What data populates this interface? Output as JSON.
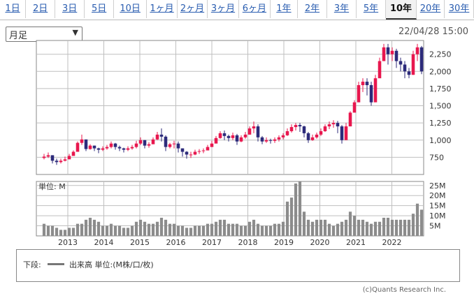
{
  "tabs": [
    {
      "label": "1日",
      "active": false
    },
    {
      "label": "2日",
      "active": false
    },
    {
      "label": "3日",
      "active": false
    },
    {
      "label": "5日",
      "active": false
    },
    {
      "label": "10日",
      "active": false
    },
    {
      "label": "1ヶ月",
      "active": false
    },
    {
      "label": "2ヶ月",
      "active": false
    },
    {
      "label": "3ヶ月",
      "active": false
    },
    {
      "label": "6ヶ月",
      "active": false
    },
    {
      "label": "1年",
      "active": false
    },
    {
      "label": "2年",
      "active": false
    },
    {
      "label": "3年",
      "active": false
    },
    {
      "label": "5年",
      "active": false
    },
    {
      "label": "10年",
      "active": true
    },
    {
      "label": "20年",
      "active": false
    },
    {
      "label": "30年",
      "active": false
    }
  ],
  "period_select": {
    "value": "月足"
  },
  "timestamp": "22/04/28 15:00",
  "colors": {
    "up": "#e8174e",
    "down": "#2c2a7a",
    "volume": "#8c8c8c",
    "grid": "#bfbfbf"
  },
  "chart_data": [
    {
      "type": "candlestick",
      "name": "price",
      "yticks": [
        750,
        1000,
        1250,
        1500,
        1750,
        2000,
        2250
      ],
      "ytick_labels": [
        "750",
        "1,000",
        "1,250",
        "1,500",
        "1,750",
        "2,000",
        "2,250"
      ],
      "ylim": [
        500,
        2450
      ],
      "xlabels": [
        "2013",
        "2014",
        "2015",
        "2016",
        "2017",
        "2018",
        "2019",
        "2020",
        "2021",
        "2022"
      ],
      "grid": true,
      "closes": [
        760,
        780,
        700,
        680,
        700,
        720,
        770,
        830,
        960,
        1010,
        870,
        920,
        880,
        860,
        880,
        900,
        950,
        900,
        880,
        860,
        880,
        900,
        950,
        1000,
        920,
        940,
        1010,
        1080,
        1050,
        900,
        940,
        950,
        880,
        830,
        790,
        790,
        830,
        840,
        850,
        900,
        950,
        1030,
        1100,
        1060,
        1030,
        1070,
        980,
        1040,
        1080,
        1170,
        1200,
        1040,
        980,
        1000,
        990,
        1010,
        1040,
        1070,
        1130,
        1190,
        1220,
        1200,
        1100,
        1000,
        1040,
        1080,
        1130,
        1200,
        1230,
        1250,
        1200,
        1000,
        1200,
        1400,
        1550,
        1800,
        1850,
        1800,
        1550,
        1900,
        2150,
        2350,
        2250,
        2300,
        2150,
        2100,
        2000,
        1950,
        2250,
        2350,
        2000
      ],
      "lows": [
        720,
        740,
        660,
        640,
        660,
        690,
        740,
        780,
        870,
        930,
        840,
        860,
        840,
        810,
        840,
        860,
        880,
        860,
        840,
        820,
        840,
        860,
        880,
        930,
        880,
        890,
        950,
        1000,
        980,
        840,
        880,
        880,
        820,
        760,
        730,
        740,
        780,
        800,
        810,
        860,
        900,
        960,
        1020,
        1000,
        980,
        1000,
        930,
        970,
        1020,
        1080,
        1100,
        980,
        940,
        960,
        950,
        960,
        980,
        1010,
        1060,
        1110,
        1140,
        1120,
        1040,
        960,
        990,
        1020,
        1060,
        1120,
        1160,
        1180,
        1100,
        950,
        1050,
        1200,
        1450,
        1600,
        1700,
        1650,
        1500,
        1650,
        1950,
        2150,
        2100,
        2150,
        2050,
        2000,
        1900,
        1900,
        1950,
        2150,
        1960
      ],
      "highs": [
        800,
        820,
        780,
        730,
        730,
        760,
        800,
        850,
        980,
        1080,
        1000,
        940,
        920,
        890,
        910,
        930,
        980,
        960,
        920,
        890,
        910,
        930,
        990,
        1040,
        1000,
        970,
        1040,
        1120,
        1170,
        1070,
        960,
        990,
        980,
        880,
        840,
        830,
        860,
        870,
        880,
        930,
        990,
        1060,
        1130,
        1140,
        1080,
        1110,
        1090,
        1070,
        1120,
        1200,
        1270,
        1230,
        1060,
        1040,
        1020,
        1040,
        1070,
        1100,
        1170,
        1230,
        1250,
        1250,
        1210,
        1120,
        1080,
        1110,
        1170,
        1230,
        1270,
        1290,
        1280,
        1220,
        1250,
        1420,
        1580,
        1850,
        1900,
        1900,
        1850,
        1950,
        2200,
        2400,
        2400,
        2350,
        2330,
        2200,
        2150,
        2050,
        2300,
        2400,
        2370
      ]
    },
    {
      "type": "bar",
      "name": "volume",
      "unit_label": "単位: M",
      "yticks": [
        5,
        10,
        15,
        20,
        25
      ],
      "ytick_labels": [
        "5M",
        "10M",
        "15M",
        "20M",
        "25M"
      ],
      "ylim": [
        0,
        27
      ],
      "values": [
        6,
        5,
        5,
        4,
        3,
        3,
        4,
        4,
        6,
        6,
        8,
        9,
        8,
        7,
        5,
        5,
        6,
        5,
        5,
        4,
        4,
        5,
        7,
        8,
        7,
        6,
        6,
        7,
        9,
        8,
        6,
        6,
        5,
        5,
        4,
        4,
        5,
        5,
        5,
        6,
        6,
        7,
        8,
        8,
        6,
        6,
        6,
        5,
        5,
        7,
        8,
        6,
        5,
        5,
        5,
        6,
        6,
        7,
        17,
        19,
        26,
        27,
        12,
        8,
        7,
        8,
        8,
        8,
        6,
        5,
        6,
        7,
        8,
        12,
        10,
        8,
        8,
        7,
        6,
        7,
        7,
        9,
        9,
        8,
        8,
        8,
        8,
        8,
        11,
        16,
        13
      ]
    }
  ],
  "legend": {
    "label": "下段:",
    "text": "出来高 単位:(M株/口/枚)"
  },
  "credit": "(c)Quants Research Inc."
}
